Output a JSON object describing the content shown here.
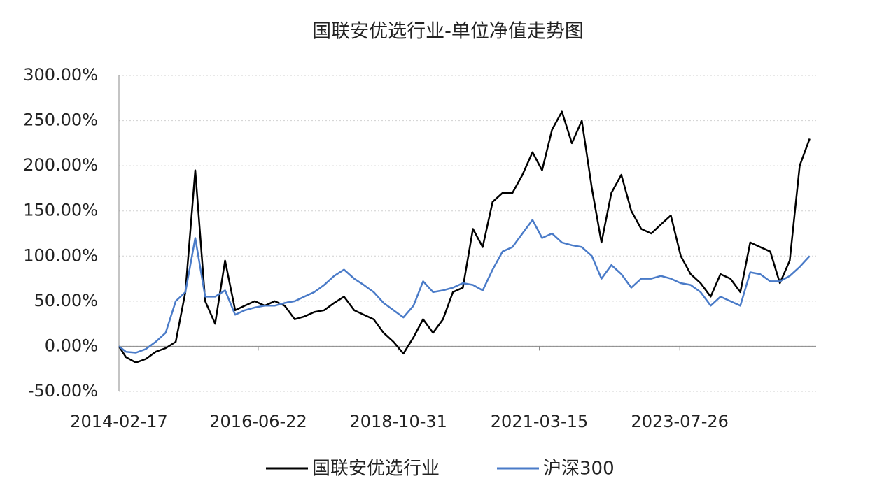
{
  "chart_data": {
    "type": "line",
    "title": "国联安优选行业-单位净值走势图",
    "x": [
      "2014-02-17",
      "2014-04-01",
      "2014-06-01",
      "2014-08-01",
      "2014-10-01",
      "2014-12-01",
      "2015-02-01",
      "2015-04-01",
      "2015-06-01",
      "2015-08-01",
      "2015-10-01",
      "2015-12-01",
      "2016-02-01",
      "2016-04-01",
      "2016-06-01",
      "2016-08-01",
      "2016-10-01",
      "2016-12-01",
      "2017-02-01",
      "2017-04-01",
      "2017-06-01",
      "2017-08-01",
      "2017-10-01",
      "2017-12-01",
      "2018-02-01",
      "2018-04-01",
      "2018-06-01",
      "2018-08-01",
      "2018-10-01",
      "2018-12-01",
      "2019-02-01",
      "2019-04-01",
      "2019-06-01",
      "2019-08-01",
      "2019-10-01",
      "2019-12-01",
      "2020-02-01",
      "2020-04-01",
      "2020-06-01",
      "2020-08-01",
      "2020-10-01",
      "2020-12-01",
      "2021-02-01",
      "2021-04-01",
      "2021-06-01",
      "2021-08-01",
      "2021-10-01",
      "2021-12-01",
      "2022-02-01",
      "2022-04-01",
      "2022-06-01",
      "2022-08-01",
      "2022-10-01",
      "2022-12-01",
      "2023-02-01",
      "2023-04-01",
      "2023-06-01",
      "2023-08-01",
      "2023-10-01",
      "2023-12-01",
      "2024-02-01",
      "2024-04-01",
      "2024-06-01",
      "2024-08-01",
      "2024-10-01",
      "2024-12-01",
      "2025-02-01",
      "2025-04-01",
      "2025-06-01",
      "2025-08-01",
      "2025-10-01"
    ],
    "series": [
      {
        "name": "国联安优选行业",
        "color": "#000000",
        "values": [
          0,
          -12,
          -18,
          -14,
          -6,
          -2,
          5,
          60,
          195,
          50,
          25,
          95,
          40,
          45,
          50,
          45,
          50,
          45,
          30,
          33,
          38,
          40,
          48,
          55,
          40,
          35,
          30,
          15,
          5,
          -8,
          10,
          30,
          15,
          30,
          60,
          65,
          130,
          110,
          160,
          170,
          170,
          190,
          215,
          195,
          240,
          260,
          225,
          250,
          175,
          115,
          170,
          190,
          150,
          130,
          125,
          135,
          145,
          100,
          80,
          70,
          55,
          80,
          75,
          60,
          115,
          110,
          105,
          70,
          95,
          200,
          230
        ]
      },
      {
        "name": "沪深300",
        "color": "#4a7bc8",
        "values": [
          0,
          -6,
          -7,
          -3,
          5,
          15,
          50,
          60,
          120,
          55,
          55,
          62,
          35,
          40,
          43,
          45,
          45,
          48,
          50,
          55,
          60,
          68,
          78,
          85,
          75,
          68,
          60,
          48,
          40,
          32,
          45,
          72,
          60,
          62,
          65,
          70,
          68,
          62,
          85,
          105,
          110,
          125,
          140,
          120,
          125,
          115,
          112,
          110,
          100,
          75,
          90,
          80,
          65,
          75,
          75,
          78,
          75,
          70,
          68,
          60,
          45,
          55,
          50,
          45,
          82,
          80,
          72,
          72,
          78,
          88,
          100
        ]
      }
    ],
    "xlim": [
      "2014-02-17",
      "2025-11-10"
    ],
    "xticks": [
      "2014-02-17",
      "2016-06-22",
      "2018-10-31",
      "2021-03-15",
      "2023-07-26"
    ],
    "ylim": [
      -50,
      300
    ],
    "yticks": [
      {
        "value": -50,
        "label": "-50.00%"
      },
      {
        "value": 0,
        "label": "0.00%"
      },
      {
        "value": 50,
        "label": "50.00%"
      },
      {
        "value": 100,
        "label": "100.00%"
      },
      {
        "value": 150,
        "label": "150.00%"
      },
      {
        "value": 200,
        "label": "200.00%"
      },
      {
        "value": 250,
        "label": "250.00%"
      },
      {
        "value": 300,
        "label": "300.00%"
      }
    ],
    "grid": true
  }
}
